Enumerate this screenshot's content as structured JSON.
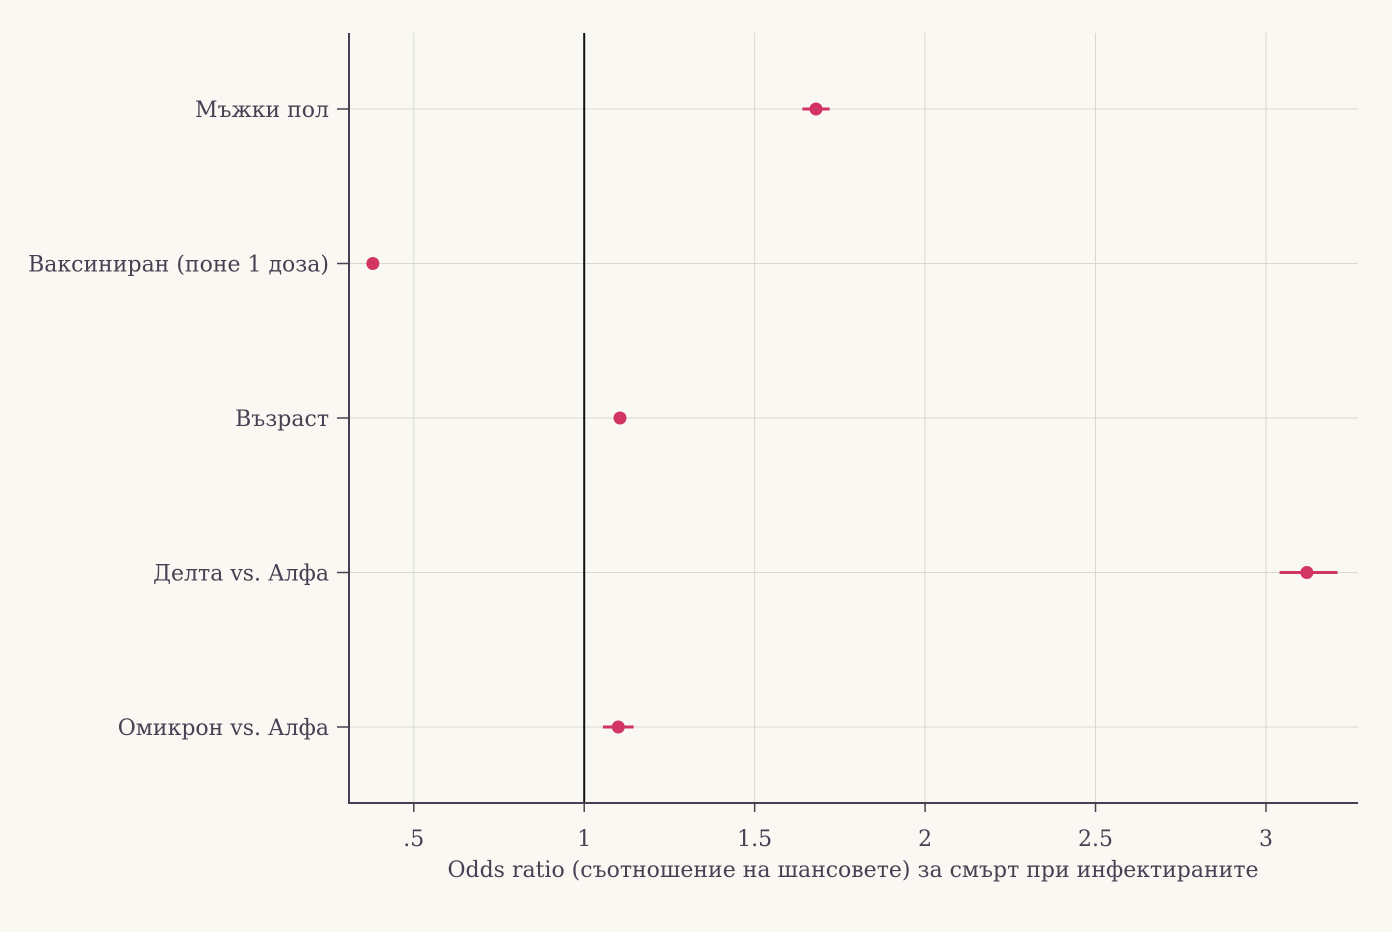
{
  "chart_data": {
    "type": "scatter",
    "subtype": "forest-plot",
    "title": "",
    "xlabel": "Odds ratio (съотношение на шансовете) за смърт при инфектираните",
    "ylabel": "",
    "xlim": [
      0.31,
      3.27
    ],
    "reference_line": 1,
    "xticks": [
      0.5,
      1,
      1.5,
      2,
      2.5,
      3
    ],
    "xtick_labels": [
      ".5",
      "1",
      "1.5",
      "2",
      "2.5",
      "3"
    ],
    "grid": true,
    "legend": "none",
    "categories": [
      "Мъжки пол",
      "Ваксиниран (поне 1 доза)",
      "Възраст",
      "Делта vs. Алфа",
      "Омикрон vs. Алфа"
    ],
    "series": [
      {
        "values": [
          1.68,
          0.38,
          1.105,
          3.12,
          1.1
        ],
        "ci_low": [
          1.64,
          0.37,
          1.1,
          3.04,
          1.055
        ],
        "ci_high": [
          1.72,
          0.39,
          1.11,
          3.21,
          1.145
        ]
      }
    ],
    "colors": {
      "point": "#d23564",
      "axis": "#4a3f52",
      "grid": "#d9d8d0",
      "reference_line": "#111111",
      "background": "#f9f8f3"
    }
  }
}
